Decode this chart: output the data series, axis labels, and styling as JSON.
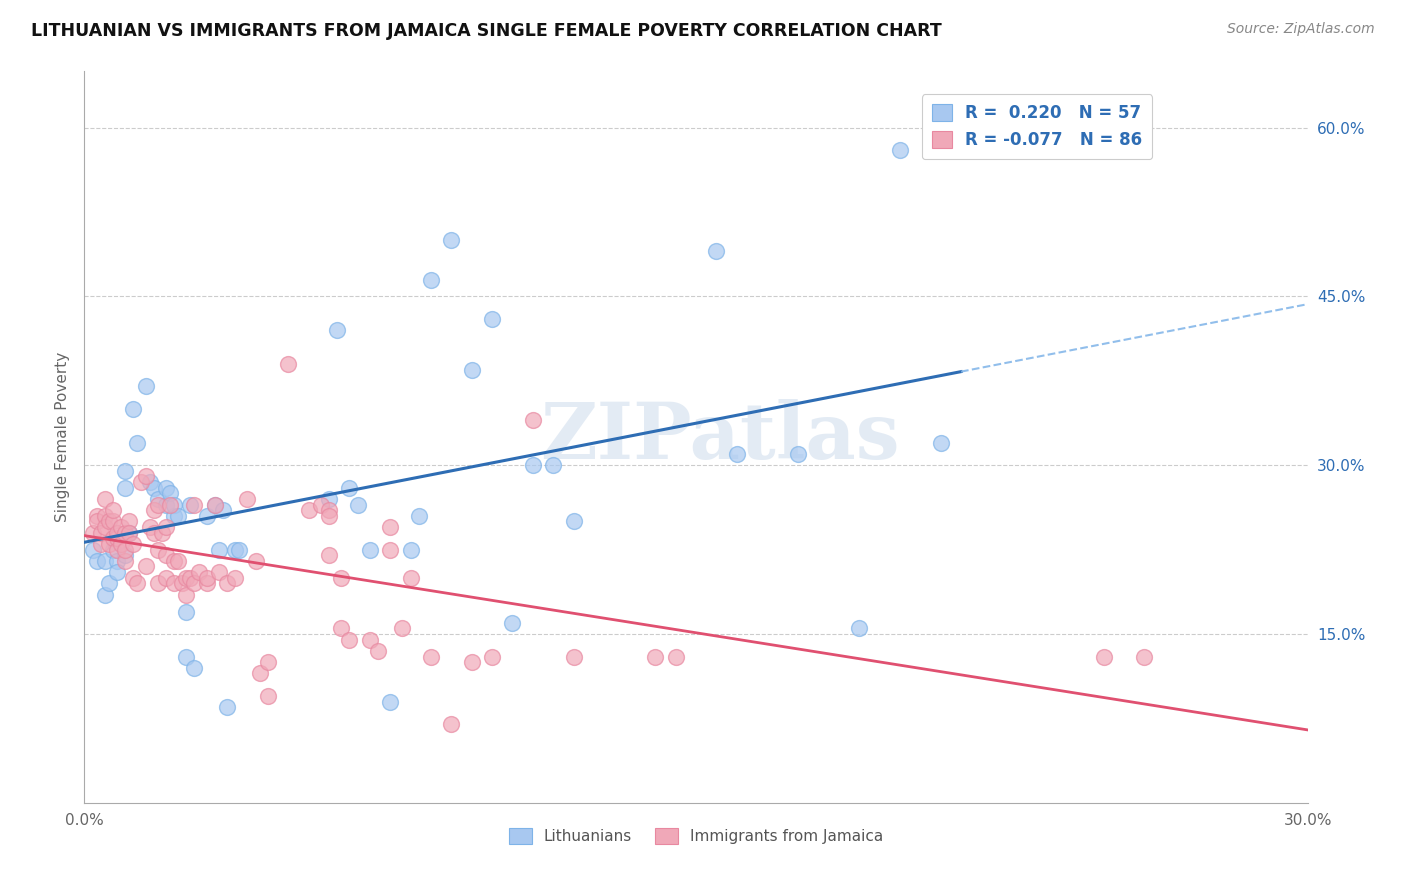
{
  "title": "LITHUANIAN VS IMMIGRANTS FROM JAMAICA SINGLE FEMALE POVERTY CORRELATION CHART",
  "source": "Source: ZipAtlas.com",
  "ylabel": "Single Female Poverty",
  "xlim": [
    0.0,
    0.3
  ],
  "ylim": [
    0.0,
    0.65
  ],
  "xticks": [
    0.0,
    0.05,
    0.1,
    0.15,
    0.2,
    0.25,
    0.3
  ],
  "xtick_labels": [
    "0.0%",
    "",
    "",
    "",
    "",
    "",
    "30.0%"
  ],
  "ytick_positions_right": [
    0.0,
    0.15,
    0.3,
    0.45,
    0.6
  ],
  "ytick_labels_right": [
    "",
    "15.0%",
    "30.0%",
    "45.0%",
    "60.0%"
  ],
  "R_blue": 0.22,
  "N_blue": 57,
  "R_pink": -0.077,
  "N_pink": 86,
  "blue_dot_color": "#A8C8F0",
  "pink_dot_color": "#F0A8B8",
  "blue_dot_edge": "#7EB3E8",
  "pink_dot_edge": "#E888A0",
  "blue_line_color": "#2E6DB4",
  "pink_line_color": "#E05070",
  "dash_line_color": "#7EB3E8",
  "watermark": "ZIPatlas",
  "legend_label_blue": "Lithuanians",
  "legend_label_pink": "Immigrants from Jamaica",
  "blue_points": [
    [
      0.002,
      0.225
    ],
    [
      0.003,
      0.215
    ],
    [
      0.005,
      0.185
    ],
    [
      0.005,
      0.215
    ],
    [
      0.006,
      0.195
    ],
    [
      0.007,
      0.225
    ],
    [
      0.008,
      0.215
    ],
    [
      0.008,
      0.205
    ],
    [
      0.01,
      0.22
    ],
    [
      0.01,
      0.28
    ],
    [
      0.01,
      0.295
    ],
    [
      0.011,
      0.24
    ],
    [
      0.012,
      0.35
    ],
    [
      0.013,
      0.32
    ],
    [
      0.015,
      0.37
    ],
    [
      0.016,
      0.285
    ],
    [
      0.017,
      0.28
    ],
    [
      0.018,
      0.27
    ],
    [
      0.02,
      0.265
    ],
    [
      0.02,
      0.28
    ],
    [
      0.021,
      0.275
    ],
    [
      0.022,
      0.255
    ],
    [
      0.022,
      0.265
    ],
    [
      0.023,
      0.255
    ],
    [
      0.025,
      0.13
    ],
    [
      0.025,
      0.17
    ],
    [
      0.026,
      0.265
    ],
    [
      0.027,
      0.12
    ],
    [
      0.03,
      0.255
    ],
    [
      0.032,
      0.265
    ],
    [
      0.033,
      0.225
    ],
    [
      0.034,
      0.26
    ],
    [
      0.035,
      0.085
    ],
    [
      0.037,
      0.225
    ],
    [
      0.038,
      0.225
    ],
    [
      0.06,
      0.27
    ],
    [
      0.062,
      0.42
    ],
    [
      0.065,
      0.28
    ],
    [
      0.067,
      0.265
    ],
    [
      0.07,
      0.225
    ],
    [
      0.075,
      0.09
    ],
    [
      0.08,
      0.225
    ],
    [
      0.082,
      0.255
    ],
    [
      0.085,
      0.465
    ],
    [
      0.09,
      0.5
    ],
    [
      0.095,
      0.385
    ],
    [
      0.1,
      0.43
    ],
    [
      0.105,
      0.16
    ],
    [
      0.11,
      0.3
    ],
    [
      0.115,
      0.3
    ],
    [
      0.12,
      0.25
    ],
    [
      0.155,
      0.49
    ],
    [
      0.16,
      0.31
    ],
    [
      0.175,
      0.31
    ],
    [
      0.19,
      0.155
    ],
    [
      0.2,
      0.58
    ],
    [
      0.21,
      0.32
    ]
  ],
  "pink_points": [
    [
      0.002,
      0.24
    ],
    [
      0.003,
      0.255
    ],
    [
      0.003,
      0.25
    ],
    [
      0.004,
      0.23
    ],
    [
      0.004,
      0.24
    ],
    [
      0.005,
      0.255
    ],
    [
      0.005,
      0.245
    ],
    [
      0.005,
      0.27
    ],
    [
      0.006,
      0.25
    ],
    [
      0.006,
      0.23
    ],
    [
      0.007,
      0.25
    ],
    [
      0.007,
      0.235
    ],
    [
      0.007,
      0.26
    ],
    [
      0.008,
      0.225
    ],
    [
      0.008,
      0.235
    ],
    [
      0.008,
      0.24
    ],
    [
      0.009,
      0.245
    ],
    [
      0.009,
      0.23
    ],
    [
      0.01,
      0.24
    ],
    [
      0.01,
      0.215
    ],
    [
      0.01,
      0.225
    ],
    [
      0.011,
      0.25
    ],
    [
      0.011,
      0.24
    ],
    [
      0.012,
      0.2
    ],
    [
      0.012,
      0.23
    ],
    [
      0.013,
      0.195
    ],
    [
      0.014,
      0.285
    ],
    [
      0.015,
      0.29
    ],
    [
      0.015,
      0.21
    ],
    [
      0.016,
      0.245
    ],
    [
      0.017,
      0.26
    ],
    [
      0.017,
      0.24
    ],
    [
      0.018,
      0.225
    ],
    [
      0.018,
      0.195
    ],
    [
      0.018,
      0.265
    ],
    [
      0.019,
      0.24
    ],
    [
      0.02,
      0.2
    ],
    [
      0.02,
      0.22
    ],
    [
      0.02,
      0.245
    ],
    [
      0.021,
      0.265
    ],
    [
      0.022,
      0.215
    ],
    [
      0.022,
      0.195
    ],
    [
      0.023,
      0.215
    ],
    [
      0.024,
      0.195
    ],
    [
      0.025,
      0.2
    ],
    [
      0.025,
      0.185
    ],
    [
      0.026,
      0.2
    ],
    [
      0.027,
      0.265
    ],
    [
      0.027,
      0.195
    ],
    [
      0.028,
      0.205
    ],
    [
      0.03,
      0.195
    ],
    [
      0.03,
      0.2
    ],
    [
      0.032,
      0.265
    ],
    [
      0.033,
      0.205
    ],
    [
      0.035,
      0.195
    ],
    [
      0.037,
      0.2
    ],
    [
      0.04,
      0.27
    ],
    [
      0.042,
      0.215
    ],
    [
      0.043,
      0.115
    ],
    [
      0.045,
      0.125
    ],
    [
      0.045,
      0.095
    ],
    [
      0.05,
      0.39
    ],
    [
      0.055,
      0.26
    ],
    [
      0.058,
      0.265
    ],
    [
      0.06,
      0.26
    ],
    [
      0.06,
      0.255
    ],
    [
      0.06,
      0.22
    ],
    [
      0.063,
      0.2
    ],
    [
      0.063,
      0.155
    ],
    [
      0.065,
      0.145
    ],
    [
      0.07,
      0.145
    ],
    [
      0.072,
      0.135
    ],
    [
      0.075,
      0.225
    ],
    [
      0.075,
      0.245
    ],
    [
      0.078,
      0.155
    ],
    [
      0.08,
      0.2
    ],
    [
      0.085,
      0.13
    ],
    [
      0.09,
      0.07
    ],
    [
      0.095,
      0.125
    ],
    [
      0.1,
      0.13
    ],
    [
      0.11,
      0.34
    ],
    [
      0.12,
      0.13
    ],
    [
      0.14,
      0.13
    ],
    [
      0.145,
      0.13
    ],
    [
      0.25,
      0.13
    ],
    [
      0.26,
      0.13
    ]
  ]
}
